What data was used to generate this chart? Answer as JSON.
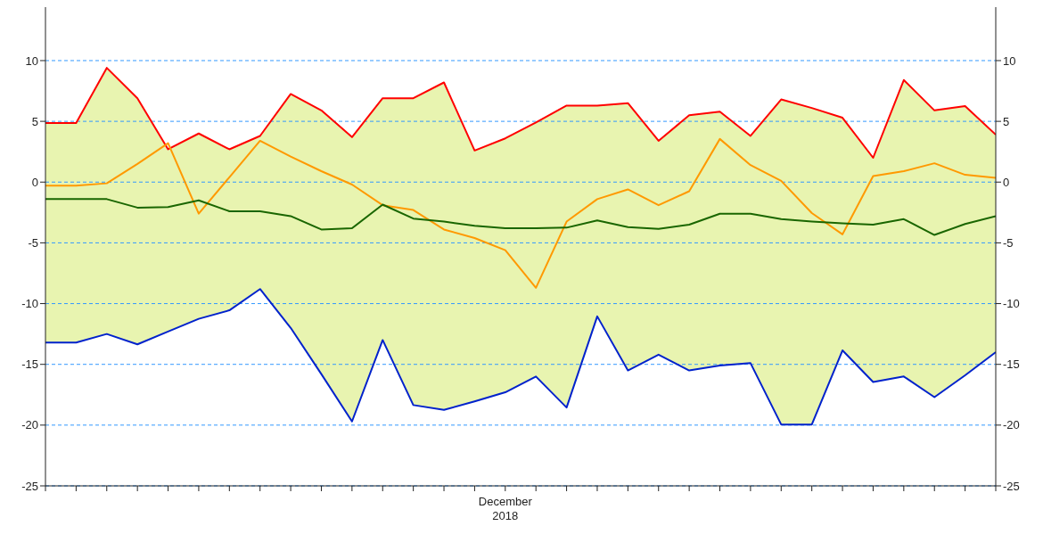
{
  "chart_data": {
    "type": "line",
    "categories": [
      null,
      null,
      null,
      null,
      null,
      null,
      null,
      null,
      null,
      null,
      null,
      null,
      null,
      null,
      null,
      "December 2018",
      null,
      null,
      null,
      null,
      null,
      null,
      null,
      null,
      null,
      null,
      null,
      null,
      null,
      null,
      null,
      null
    ],
    "series": [
      {
        "color": "#ff0000",
        "values": [
          4.86,
          4.86,
          9.4,
          6.9,
          2.7,
          4.0,
          2.7,
          3.8,
          7.25,
          5.9,
          3.7,
          6.9,
          6.9,
          8.2,
          2.6,
          3.6,
          4.9,
          6.3,
          6.3,
          6.5,
          3.4,
          5.5,
          5.8,
          3.8,
          6.8,
          6.1,
          5.3,
          2.0,
          8.4,
          5.9,
          6.25,
          3.9
        ]
      },
      {
        "color": "#ff9900",
        "values": [
          -0.3,
          -0.3,
          -0.1,
          1.5,
          3.2,
          -2.6,
          0.4,
          3.4,
          2.1,
          0.9,
          -0.2,
          -1.9,
          -2.3,
          -3.9,
          -4.6,
          -5.6,
          -8.7,
          -3.25,
          -1.4,
          -0.6,
          -1.9,
          -0.75,
          3.55,
          1.4,
          0.1,
          -2.55,
          -4.3,
          0.5,
          0.9,
          1.55,
          0.6,
          0.35
        ]
      },
      {
        "color": "#1a6600",
        "values": [
          -1.4,
          -1.4,
          -1.4,
          -2.1,
          -2.05,
          -1.5,
          -2.4,
          -2.4,
          -2.8,
          -3.9,
          -3.8,
          -1.85,
          -3.0,
          -3.25,
          -3.6,
          -3.8,
          -3.8,
          -3.75,
          -3.15,
          -3.7,
          -3.85,
          -3.5,
          -2.6,
          -2.6,
          -3.05,
          -3.25,
          -3.4,
          -3.5,
          -3.05,
          -4.35,
          -3.45,
          -2.8
        ],
        "lower": [
          -13.2,
          -13.2,
          -12.5,
          -13.35,
          -12.3,
          -11.25,
          -10.55,
          -8.8,
          -12.0,
          -15.8,
          -19.7,
          -13.0,
          -18.35,
          -18.75,
          -18.05,
          -17.3,
          -16.0,
          -18.55,
          -11.05,
          -15.5,
          -14.2,
          -15.5,
          -15.1,
          -14.9,
          -19.95,
          -19.95,
          -13.85,
          -16.45,
          -16.0,
          -17.7,
          -15.9,
          -14.0
        ],
        "upper": [
          4.86,
          4.86,
          9.4,
          6.9,
          2.7,
          4.0,
          2.7,
          3.8,
          7.25,
          5.9,
          3.7,
          6.9,
          6.9,
          8.2,
          2.6,
          3.6,
          4.9,
          6.3,
          6.3,
          6.5,
          3.4,
          5.5,
          5.8,
          3.8,
          6.8,
          6.1,
          5.3,
          2.0,
          8.4,
          5.9,
          6.25,
          3.9
        ]
      },
      {
        "color": "#0022cc",
        "values": [
          -13.2,
          -13.2,
          -12.5,
          -13.35,
          -12.3,
          -11.25,
          -10.55,
          -8.8,
          -12.0,
          -15.8,
          -19.7,
          -13.0,
          -18.35,
          -18.75,
          -18.05,
          -17.3,
          -16.0,
          -18.55,
          -11.05,
          -15.5,
          -14.2,
          -15.5,
          -15.1,
          -14.9,
          -19.95,
          -19.95,
          -13.85,
          -16.45,
          -16.0,
          -17.7,
          -15.9,
          -14.0
        ]
      }
    ],
    "ylim": [
      -25,
      14.4
    ],
    "yticks": [
      -25,
      -20,
      -15,
      -10,
      -5,
      0,
      5,
      10
    ],
    "y2lim": [
      -25,
      14.4
    ],
    "y2ticks": [
      -25,
      -20,
      -15,
      -10,
      -5,
      0,
      5,
      10
    ],
    "grid": "y",
    "marker": "none",
    "line_style": "solid"
  }
}
